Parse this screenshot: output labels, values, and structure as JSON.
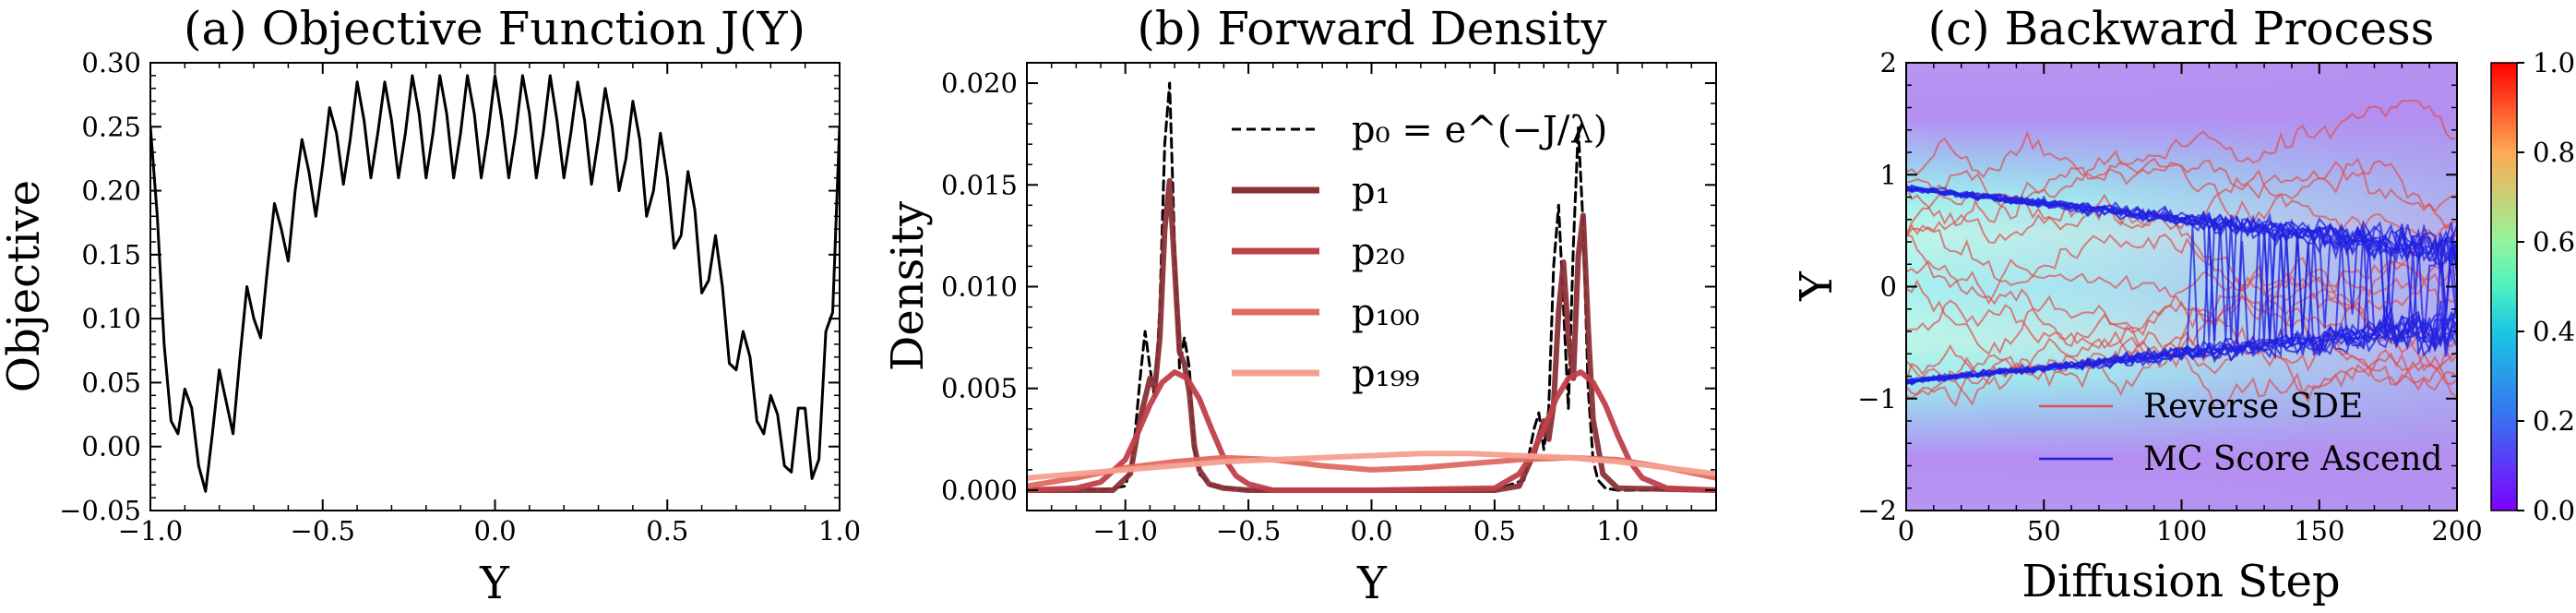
{
  "chart_data": [
    {
      "type": "line",
      "title": "(a) Objective Function J(Y)",
      "xlabel": "Y",
      "ylabel": "Objective",
      "xlim": [
        -1.0,
        1.0
      ],
      "ylim": [
        -0.05,
        0.3
      ],
      "xticks": [
        "−1.0",
        "−0.5",
        "0.0",
        "0.5",
        "1.0"
      ],
      "yticks": [
        "−0.05",
        "0.00",
        "0.05",
        "0.10",
        "0.15",
        "0.20",
        "0.25",
        "0.30"
      ],
      "series": [
        {
          "color": "#000000",
          "x": [
            -1.0,
            -0.98,
            -0.96,
            -0.94,
            -0.92,
            -0.9,
            -0.88,
            -0.86,
            -0.84,
            -0.82,
            -0.8,
            -0.78,
            -0.76,
            -0.74,
            -0.72,
            -0.7,
            -0.68,
            -0.66,
            -0.64,
            -0.62,
            -0.6,
            -0.58,
            -0.56,
            -0.54,
            -0.52,
            -0.5,
            -0.48,
            -0.46,
            -0.44,
            -0.42,
            -0.4,
            -0.38,
            -0.36,
            -0.34,
            -0.32,
            -0.3,
            -0.28,
            -0.26,
            -0.24,
            -0.22,
            -0.2,
            -0.18,
            -0.16,
            -0.14,
            -0.12,
            -0.1,
            -0.08,
            -0.06,
            -0.04,
            -0.02,
            0.0,
            0.02,
            0.04,
            0.06,
            0.08,
            0.1,
            0.12,
            0.14,
            0.16,
            0.18,
            0.2,
            0.22,
            0.24,
            0.26,
            0.28,
            0.3,
            0.32,
            0.34,
            0.36,
            0.38,
            0.4,
            0.42,
            0.44,
            0.46,
            0.48,
            0.5,
            0.52,
            0.54,
            0.56,
            0.58,
            0.6,
            0.62,
            0.64,
            0.66,
            0.68,
            0.7,
            0.72,
            0.74,
            0.76,
            0.78,
            0.8,
            0.82,
            0.84,
            0.86,
            0.88,
            0.9,
            0.92,
            0.94,
            0.96,
            0.98,
            1.0
          ],
          "y": [
            0.25,
            0.18,
            0.08,
            0.02,
            0.01,
            0.045,
            0.03,
            -0.015,
            -0.035,
            0.01,
            0.06,
            0.035,
            0.01,
            0.07,
            0.125,
            0.1,
            0.085,
            0.14,
            0.19,
            0.17,
            0.145,
            0.2,
            0.24,
            0.215,
            0.18,
            0.22,
            0.265,
            0.245,
            0.205,
            0.24,
            0.285,
            0.255,
            0.21,
            0.245,
            0.285,
            0.255,
            0.21,
            0.245,
            0.29,
            0.26,
            0.21,
            0.245,
            0.29,
            0.26,
            0.21,
            0.245,
            0.29,
            0.26,
            0.21,
            0.245,
            0.29,
            0.255,
            0.21,
            0.245,
            0.29,
            0.26,
            0.21,
            0.245,
            0.29,
            0.255,
            0.21,
            0.245,
            0.285,
            0.255,
            0.205,
            0.24,
            0.28,
            0.25,
            0.2,
            0.225,
            0.27,
            0.24,
            0.18,
            0.2,
            0.245,
            0.21,
            0.155,
            0.165,
            0.215,
            0.185,
            0.12,
            0.13,
            0.165,
            0.125,
            0.065,
            0.06,
            0.09,
            0.07,
            0.02,
            0.01,
            0.04,
            0.025,
            -0.015,
            -0.02,
            0.03,
            0.03,
            -0.025,
            -0.01,
            0.09,
            0.105,
            0.25
          ]
        }
      ]
    },
    {
      "type": "line",
      "title": "(b) Forward Density",
      "xlabel": "Y",
      "ylabel": "Density",
      "xlim": [
        -1.4,
        1.4
      ],
      "ylim": [
        -0.001,
        0.021
      ],
      "xticks": [
        "−1.0",
        "−0.5",
        "0.0",
        "0.5",
        "1.0"
      ],
      "yticks": [
        "0.000",
        "0.005",
        "0.010",
        "0.015",
        "0.020"
      ],
      "legend_position": "top-center",
      "series": [
        {
          "name": "p₀ = e^(−J/λ)",
          "color": "#000000",
          "dashed": true,
          "x": [
            -1.4,
            -1.1,
            -1.0,
            -0.97,
            -0.94,
            -0.92,
            -0.9,
            -0.88,
            -0.86,
            -0.84,
            -0.82,
            -0.8,
            -0.78,
            -0.76,
            -0.74,
            -0.72,
            -0.7,
            -0.65,
            -0.5,
            0.0,
            0.5,
            0.62,
            0.66,
            0.68,
            0.7,
            0.72,
            0.74,
            0.76,
            0.78,
            0.8,
            0.82,
            0.84,
            0.86,
            0.88,
            0.9,
            0.92,
            0.95,
            1.0,
            1.4
          ],
          "y": [
            0.0,
            0.0,
            0.0002,
            0.0015,
            0.0055,
            0.0078,
            0.006,
            0.0045,
            0.009,
            0.017,
            0.02,
            0.012,
            0.006,
            0.0075,
            0.006,
            0.002,
            0.0008,
            0.0002,
            0.0,
            0.0,
            0.0,
            0.0005,
            0.003,
            0.0038,
            0.002,
            0.004,
            0.011,
            0.014,
            0.009,
            0.004,
            0.012,
            0.0178,
            0.013,
            0.005,
            0.0015,
            0.0005,
            0.0001,
            0.0,
            0.0
          ]
        },
        {
          "name": "p₁",
          "color": "#8b3038",
          "x": [
            -1.4,
            -1.05,
            -0.98,
            -0.94,
            -0.9,
            -0.88,
            -0.86,
            -0.84,
            -0.82,
            -0.8,
            -0.78,
            -0.76,
            -0.74,
            -0.72,
            -0.7,
            -0.66,
            -0.6,
            -0.5,
            0.0,
            0.5,
            0.6,
            0.66,
            0.7,
            0.72,
            0.74,
            0.76,
            0.78,
            0.8,
            0.82,
            0.84,
            0.86,
            0.88,
            0.9,
            0.94,
            1.0,
            1.4
          ],
          "y": [
            0.0,
            0.0,
            0.0008,
            0.0035,
            0.0055,
            0.005,
            0.0075,
            0.0128,
            0.0152,
            0.011,
            0.0068,
            0.0062,
            0.0048,
            0.0022,
            0.001,
            0.0003,
            0.0001,
            0.0,
            0.0,
            0.0,
            0.0002,
            0.0018,
            0.0034,
            0.0025,
            0.0042,
            0.0088,
            0.0112,
            0.0075,
            0.0055,
            0.0115,
            0.0135,
            0.008,
            0.0035,
            0.0008,
            0.0001,
            0.0
          ]
        },
        {
          "name": "p₂₀",
          "color": "#c0404a",
          "x": [
            -1.4,
            -1.2,
            -1.1,
            -1.0,
            -0.95,
            -0.9,
            -0.85,
            -0.8,
            -0.75,
            -0.7,
            -0.65,
            -0.6,
            -0.55,
            -0.5,
            -0.4,
            0.0,
            0.5,
            0.6,
            0.65,
            0.7,
            0.75,
            0.8,
            0.85,
            0.9,
            0.95,
            1.0,
            1.05,
            1.1,
            1.2,
            1.4
          ],
          "y": [
            0.0,
            0.0001,
            0.0004,
            0.0015,
            0.0028,
            0.0042,
            0.0053,
            0.0058,
            0.0055,
            0.0045,
            0.003,
            0.0016,
            0.0007,
            0.0003,
            0.0,
            0.0,
            0.0001,
            0.0008,
            0.0017,
            0.003,
            0.0045,
            0.0055,
            0.0058,
            0.0053,
            0.0042,
            0.0027,
            0.0014,
            0.0006,
            0.0001,
            0.0
          ]
        },
        {
          "name": "p₁₀₀",
          "color": "#e06a5f",
          "x": [
            -1.4,
            -1.2,
            -1.0,
            -0.8,
            -0.6,
            -0.4,
            -0.2,
            0.0,
            0.2,
            0.4,
            0.6,
            0.8,
            1.0,
            1.2,
            1.4
          ],
          "y": [
            0.0002,
            0.0006,
            0.0011,
            0.0014,
            0.0016,
            0.0015,
            0.0012,
            0.001,
            0.0011,
            0.0013,
            0.0015,
            0.0016,
            0.0015,
            0.0011,
            0.0006
          ]
        },
        {
          "name": "p₁₉₉",
          "color": "#f4a090",
          "x": [
            -1.4,
            -1.2,
            -1.0,
            -0.8,
            -0.6,
            -0.4,
            -0.2,
            0.0,
            0.2,
            0.4,
            0.6,
            0.8,
            1.0,
            1.2,
            1.4
          ],
          "y": [
            0.0006,
            0.0008,
            0.001,
            0.0012,
            0.0014,
            0.0015,
            0.0016,
            0.0017,
            0.0018,
            0.0018,
            0.0017,
            0.0016,
            0.0014,
            0.0011,
            0.0008
          ]
        }
      ]
    },
    {
      "type": "line",
      "title": "(c) Backward Process",
      "xlabel": "Diffusion Step",
      "ylabel": "Y",
      "xlim": [
        0,
        200
      ],
      "ylim": [
        -2,
        2
      ],
      "xticks": [
        "0",
        "50",
        "100",
        "150",
        "200"
      ],
      "yticks": [
        "−2",
        "−1",
        "0",
        "1",
        "2"
      ],
      "colorbar": {
        "range": [
          0.0,
          1.0
        ],
        "ticks": [
          "0.0",
          "0.2",
          "0.4",
          "0.6",
          "0.8",
          "1.0"
        ]
      },
      "legend_position": "lower-right",
      "series": [
        {
          "name": "Reverse SDE",
          "color": "#e05050",
          "kind": "red-trajectories"
        },
        {
          "name": "MC Score Ascend",
          "color": "#2020e0",
          "kind": "blue-trajectories"
        }
      ]
    }
  ]
}
